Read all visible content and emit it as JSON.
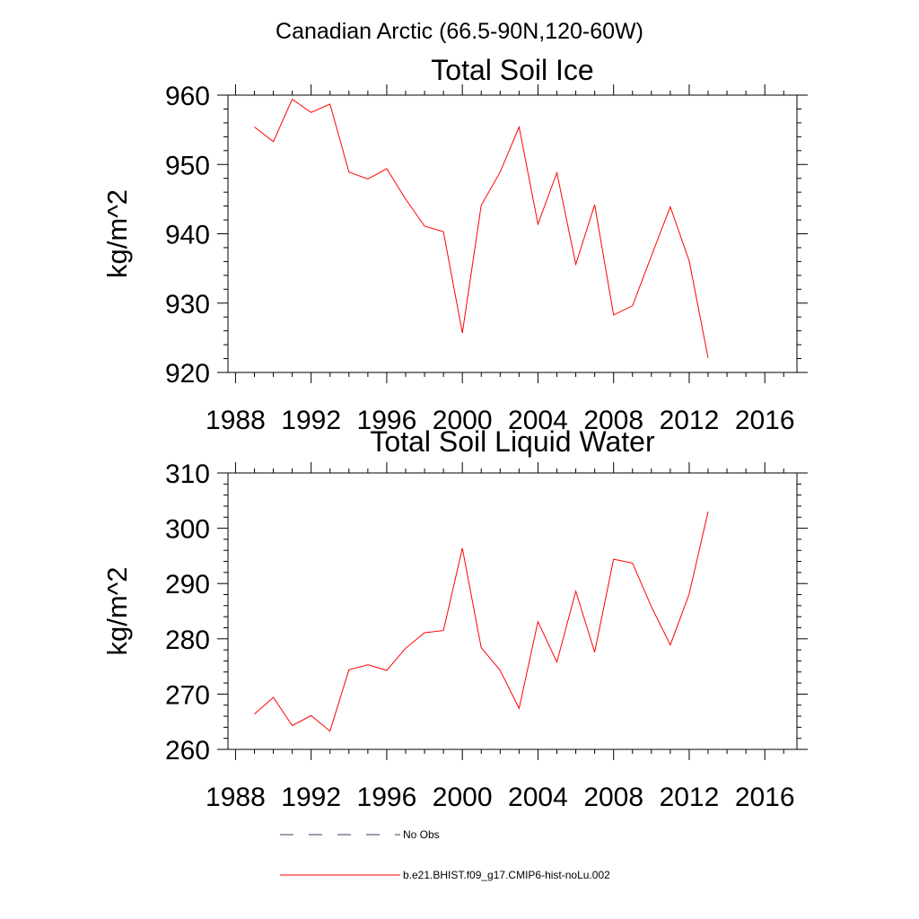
{
  "figure": {
    "title": "Canadian Arctic (66.5-90N,120-60W)"
  },
  "legend": {
    "placement": "bottom",
    "entries": [
      {
        "label": "No Obs",
        "style": "dashed",
        "color": "#3a3a6a"
      },
      {
        "label": "b.e21.BHIST.f09_g17.CMIP6-hist-noLu.002",
        "style": "solid",
        "color": "#ff0000"
      }
    ]
  },
  "chart_data": [
    {
      "type": "line",
      "title": "Total Soil Ice",
      "ylabel": "kg/m^2",
      "xlabel": "",
      "xlim": [
        1987.6,
        2017.7
      ],
      "ylim": [
        920,
        960
      ],
      "xticks": [
        1988,
        1992,
        1996,
        2000,
        2004,
        2008,
        2012,
        2016
      ],
      "yticks": [
        920,
        930,
        940,
        950,
        960
      ],
      "grid": false,
      "x": [
        1989,
        1990,
        1991,
        1992,
        1993,
        1994,
        1995,
        1996,
        1997,
        1998,
        1999,
        2000,
        2001,
        2002,
        2003,
        2004,
        2005,
        2006,
        2007,
        2008,
        2009,
        2010,
        2011,
        2012,
        2013
      ],
      "series": [
        {
          "color": "#ff0000",
          "values": [
            955.4,
            953.3,
            959.4,
            957.5,
            958.7,
            948.9,
            947.9,
            949.4,
            945.0,
            941.1,
            940.3,
            925.7,
            944.1,
            948.9,
            955.4,
            941.4,
            948.8,
            935.6,
            944.2,
            928.3,
            929.6,
            936.8,
            943.9,
            936.1,
            922.1
          ]
        }
      ]
    },
    {
      "type": "line",
      "title": "Total Soil Liquid Water",
      "ylabel": "kg/m^2",
      "xlabel": "",
      "xlim": [
        1987.6,
        2017.7
      ],
      "ylim": [
        260,
        310
      ],
      "xticks": [
        1988,
        1992,
        1996,
        2000,
        2004,
        2008,
        2012,
        2016
      ],
      "yticks": [
        260,
        270,
        280,
        290,
        300,
        310
      ],
      "grid": false,
      "x": [
        1989,
        1990,
        1991,
        1992,
        1993,
        1994,
        1995,
        1996,
        1997,
        1998,
        1999,
        2000,
        2001,
        2002,
        2003,
        2004,
        2005,
        2006,
        2007,
        2008,
        2009,
        2010,
        2011,
        2012,
        2013
      ],
      "series": [
        {
          "color": "#ff0000",
          "values": [
            266.4,
            269.4,
            264.3,
            266.1,
            263.3,
            274.4,
            275.3,
            274.3,
            278.3,
            281.1,
            281.5,
            296.4,
            278.4,
            274.3,
            267.4,
            283.1,
            275.8,
            288.6,
            277.6,
            294.4,
            293.7,
            285.8,
            278.9,
            288.1,
            303.0
          ]
        }
      ]
    }
  ]
}
